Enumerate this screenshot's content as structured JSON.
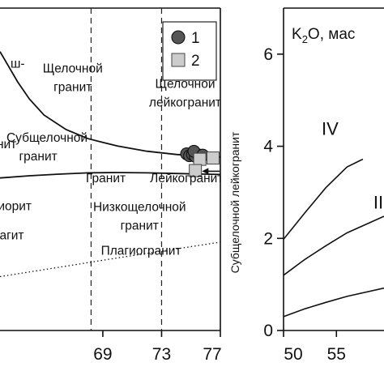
{
  "chart_data": [
    {
      "type": "scatter",
      "xlim": [
        62.0,
        77.0
      ],
      "ylim": [
        0.0,
        1.0
      ],
      "x_ticks": [
        69,
        73,
        77
      ],
      "grid": false,
      "vertical_dashed_lines": [
        68.2,
        73.0
      ],
      "series": [
        {
          "name": "1",
          "marker": "circle",
          "color": "#555555",
          "points": [
            [
              74.7,
              0.548
            ],
            [
              74.9,
              0.542
            ],
            [
              75.1,
              0.546
            ],
            [
              75.3,
              0.54
            ],
            [
              75.5,
              0.545
            ],
            [
              75.7,
              0.538
            ],
            [
              75.2,
              0.556
            ],
            [
              75.8,
              0.544
            ]
          ]
        },
        {
          "name": "2",
          "marker": "square",
          "color": "#cccccc",
          "points": [
            [
              75.6,
              0.531
            ],
            [
              76.5,
              0.535
            ],
            [
              75.3,
              0.496
            ]
          ]
        }
      ],
      "boundary_curves": [
        {
          "style": "solid",
          "points": [
            [
              62.0,
              0.865
            ],
            [
              62.5,
              0.826
            ],
            [
              63.2,
              0.771
            ],
            [
              64.0,
              0.718
            ],
            [
              65.0,
              0.668
            ],
            [
              66.5,
              0.623
            ],
            [
              68.0,
              0.595
            ],
            [
              70.0,
              0.572
            ],
            [
              72.0,
              0.556
            ],
            [
              74.0,
              0.546
            ],
            [
              76.0,
              0.54
            ],
            [
              77.0,
              0.538
            ]
          ]
        },
        {
          "style": "solid",
          "points": [
            [
              62.0,
              0.473
            ],
            [
              64.0,
              0.48
            ],
            [
              66.0,
              0.485
            ],
            [
              68.0,
              0.489
            ],
            [
              70.0,
              0.49
            ],
            [
              72.0,
              0.489
            ],
            [
              74.0,
              0.487
            ],
            [
              76.0,
              0.485
            ],
            [
              77.0,
              0.484
            ]
          ]
        },
        {
          "style": "dotted",
          "points": [
            [
              62.0,
              0.167
            ],
            [
              66.0,
              0.196
            ],
            [
              70.0,
              0.225
            ],
            [
              74.0,
              0.253
            ],
            [
              77.0,
              0.274
            ]
          ]
        }
      ],
      "field_labels": [
        {
          "text": "Щелочной",
          "x": 66.95,
          "y": 0.8
        },
        {
          "text": "гранит",
          "x": 66.95,
          "y": 0.743
        },
        {
          "text": "Щелочной",
          "x": 74.6,
          "y": 0.752
        },
        {
          "text": "лейкогранит",
          "x": 74.6,
          "y": 0.695
        },
        {
          "text": "Субщелочной",
          "x": 65.2,
          "y": 0.585
        },
        {
          "text": "гранит",
          "x": 64.6,
          "y": 0.528
        },
        {
          "text": "Гранит",
          "x": 69.2,
          "y": 0.46
        },
        {
          "text": "Лейкогранит",
          "x": 74.7,
          "y": 0.46
        },
        {
          "text": "Низкощелочной",
          "x": 71.5,
          "y": 0.37
        },
        {
          "text": "гранит",
          "x": 71.5,
          "y": 0.313
        },
        {
          "text": "Плагиогранит",
          "x": 71.6,
          "y": 0.235
        }
      ],
      "clipped_labels": [
        {
          "text": "ш-",
          "x": 63.2,
          "y": 0.815
        },
        {
          "text": "нит",
          "x": 62.45,
          "y": 0.565
        },
        {
          "text": "иорит",
          "x": 63.0,
          "y": 0.373
        },
        {
          "text": "агит",
          "x": 62.8,
          "y": 0.283
        }
      ],
      "vertical_label": "Субщелочной лейкогранит",
      "arrow": {
        "from": [
          76.95,
          0.494
        ],
        "to": [
          75.75,
          0.494
        ]
      },
      "legend": {
        "location": "top-right",
        "entries": [
          "1",
          "2"
        ]
      }
    },
    {
      "type": "line",
      "xlim": [
        50,
        59.5
      ],
      "ylim": [
        0,
        7
      ],
      "x_ticks": [
        50,
        55
      ],
      "y_ticks": [
        0,
        2,
        4,
        6
      ],
      "grid": false,
      "ylabel": "K2O, мас",
      "series": [
        {
          "points": [
            [
              50,
              1.98
            ],
            [
              52,
              2.55
            ],
            [
              54,
              3.1
            ],
            [
              56,
              3.55
            ],
            [
              57.5,
              3.72
            ]
          ]
        },
        {
          "points": [
            [
              50,
              1.2
            ],
            [
              52,
              1.54
            ],
            [
              54,
              1.84
            ],
            [
              56,
              2.12
            ],
            [
              59.5,
              2.48
            ]
          ]
        },
        {
          "points": [
            [
              50,
              0.3
            ],
            [
              52,
              0.47
            ],
            [
              54,
              0.61
            ],
            [
              56,
              0.74
            ],
            [
              59.5,
              0.92
            ]
          ]
        }
      ],
      "region_labels": [
        {
          "text": "IV",
          "x": 54.4,
          "y": 4.25
        },
        {
          "text": "III",
          "x": 59.2,
          "y": 2.65
        }
      ]
    }
  ],
  "colors": {
    "axis": "#111111",
    "circle_fill": "#555555",
    "square_fill": "#cccccc"
  }
}
